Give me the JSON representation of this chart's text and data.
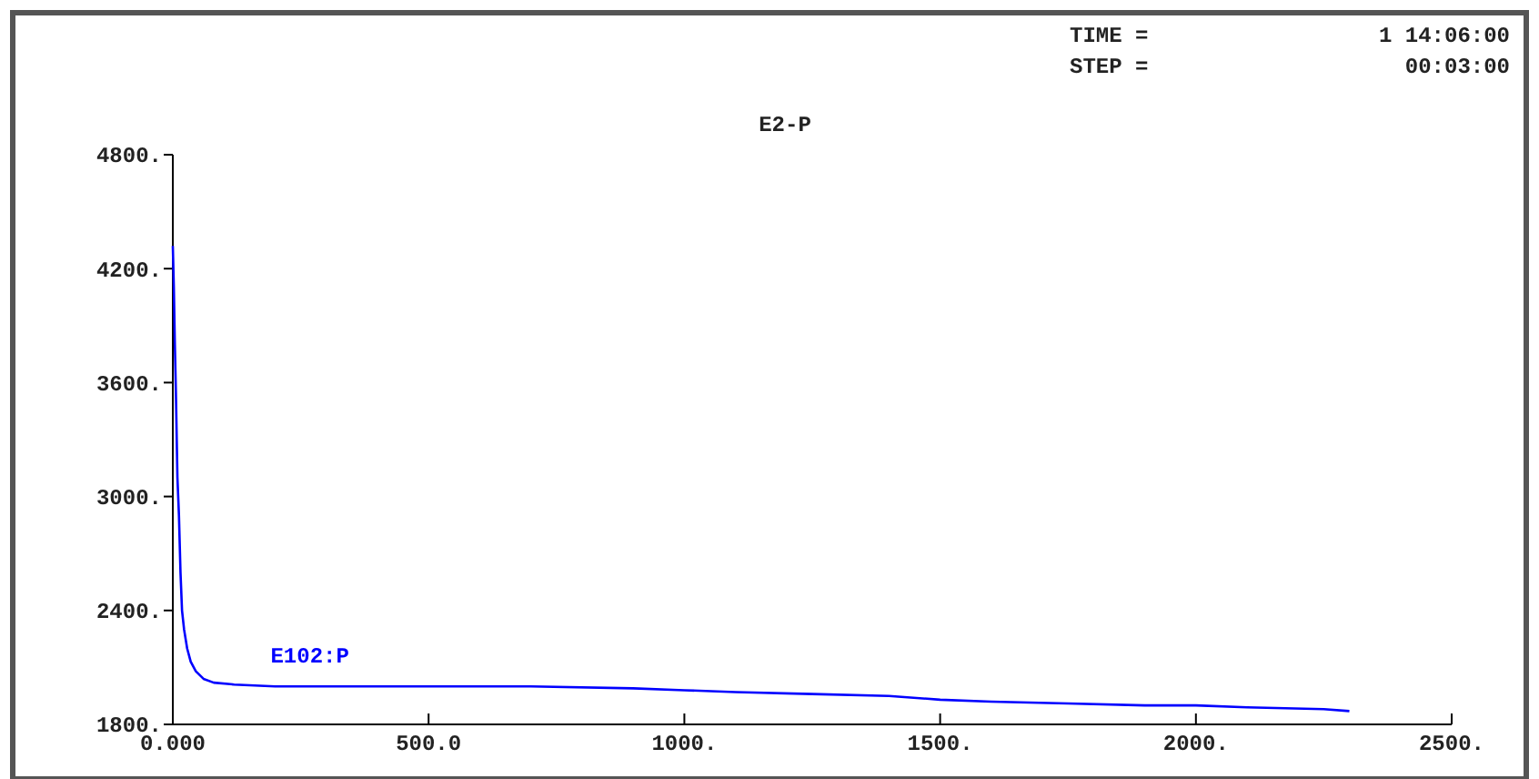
{
  "chart_data": {
    "type": "line",
    "title": "E2-P",
    "annotations": [
      "TIME =",
      "1 14:06:00",
      "STEP =",
      "00:03:00"
    ],
    "xlim": [
      0,
      2500
    ],
    "xticks": [
      {
        "value": 0,
        "label": "0.000"
      },
      {
        "value": 500,
        "label": "500.0"
      },
      {
        "value": 1000,
        "label": "1000."
      },
      {
        "value": 1500,
        "label": "1500."
      },
      {
        "value": 2000,
        "label": "2000."
      },
      {
        "value": 2500,
        "label": "2500."
      }
    ],
    "ylim": [
      1800,
      4800
    ],
    "yticks": [
      {
        "value": 1800,
        "label": "1800."
      },
      {
        "value": 2400,
        "label": "2400."
      },
      {
        "value": 3000,
        "label": "3000."
      },
      {
        "value": 3600,
        "label": "3600."
      },
      {
        "value": 4200,
        "label": "4200."
      },
      {
        "value": 4800,
        "label": "4800."
      }
    ],
    "grid": false,
    "series": [
      {
        "name": "E102:P",
        "color": "#0000ff",
        "x": [
          0,
          2,
          4,
          6,
          9,
          12,
          15,
          18,
          22,
          28,
          35,
          45,
          60,
          80,
          120,
          200,
          400,
          600,
          700,
          900,
          1000,
          1100,
          1250,
          1400,
          1500,
          1600,
          1750,
          1900,
          2000,
          2100,
          2250,
          2300
        ],
        "values": [
          4320,
          4100,
          3800,
          3550,
          3100,
          2900,
          2600,
          2400,
          2300,
          2200,
          2130,
          2080,
          2040,
          2020,
          2010,
          2000,
          2000,
          2000,
          2000,
          1990,
          1980,
          1970,
          1960,
          1950,
          1930,
          1920,
          1910,
          1900,
          1900,
          1890,
          1880,
          1870
        ]
      }
    ]
  }
}
